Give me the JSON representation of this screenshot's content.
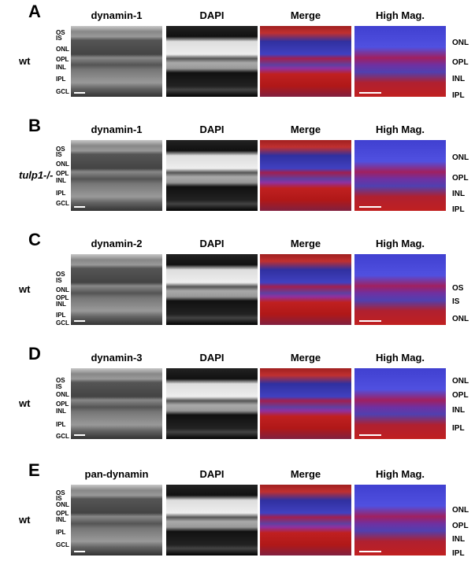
{
  "figure": {
    "rows": [
      {
        "letter": "A",
        "genotype": "wt",
        "headers": [
          "dynamin-1",
          "DAPI",
          "Merge",
          "High Mag."
        ],
        "left_labels": [
          "OS",
          "IS",
          "ONL",
          "OPL",
          "INL",
          "IPL",
          "GCL"
        ],
        "right_labels": [
          "ONL",
          "OPL",
          "INL",
          "IPL"
        ]
      },
      {
        "letter": "B",
        "genotype": "tulp1-/-",
        "headers": [
          "dynamin-1",
          "DAPI",
          "Merge",
          "High Mag."
        ],
        "left_labels": [
          "OS",
          "IS",
          "ONL",
          "OPL",
          "INL",
          "IPL",
          "GCL"
        ],
        "right_labels": [
          "ONL",
          "OPL",
          "INL",
          "IPL"
        ]
      },
      {
        "letter": "C",
        "genotype": "wt",
        "headers": [
          "dynamin-2",
          "DAPI",
          "Merge",
          "High Mag."
        ],
        "left_labels": [
          "OS",
          "IS",
          "ONL",
          "OPL",
          "INL",
          "IPL",
          "GCL"
        ],
        "right_labels": [
          "OS",
          "IS",
          "ONL"
        ]
      },
      {
        "letter": "D",
        "genotype": "wt",
        "headers": [
          "dynamin-3",
          "DAPI",
          "Merge",
          "High Mag."
        ],
        "left_labels": [
          "OS",
          "IS",
          "ONL",
          "OPL",
          "INL",
          "IPL",
          "GCL"
        ],
        "right_labels": [
          "ONL",
          "OPL",
          "INL",
          "IPL"
        ]
      },
      {
        "letter": "E",
        "genotype": "wt",
        "headers": [
          "pan-dynamin",
          "DAPI",
          "Merge",
          "High Mag."
        ],
        "left_labels": [
          "OS",
          "IS",
          "ONL",
          "OPL",
          "INL",
          "IPL",
          "GCL"
        ],
        "right_labels": [
          "ONL",
          "OPL",
          "INL",
          "IPL"
        ]
      }
    ]
  }
}
